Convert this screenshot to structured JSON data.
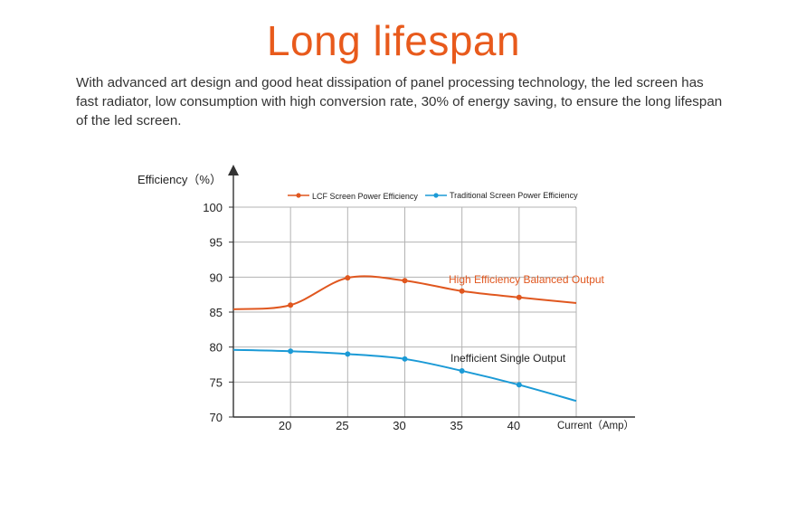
{
  "page": {
    "title": "Long lifespan",
    "description": "With advanced art design and good heat dissipation of panel processing technology, the led screen has fast radiator, low consumption with high conversion rate, 30% of energy saving,  to ensure the long lifespan of the led screen."
  },
  "colors": {
    "accent": "#e85a1c",
    "lcf": "#e0571f",
    "traditional": "#1b9ad6",
    "grid": "#b3b3b3",
    "axis": "#333333"
  },
  "chart_data": {
    "type": "line",
    "ylabel": "Efficiency（%）",
    "xlabel": "Current（Amp）",
    "xlim": [
      15,
      45
    ],
    "ylim": [
      70,
      100
    ],
    "x_ticks": [
      20,
      25,
      30,
      35,
      40
    ],
    "y_ticks": [
      70,
      75,
      80,
      85,
      90,
      95,
      100
    ],
    "grid": true,
    "legend_position": "top",
    "series": [
      {
        "name": "LCF Screen Power Efficiency",
        "x": [
          15,
          20,
          25,
          30,
          35,
          40,
          45
        ],
        "y": [
          85.4,
          86.0,
          89.9,
          89.5,
          88.0,
          87.1,
          86.3
        ],
        "marker_x": [
          20,
          25,
          30,
          35,
          40
        ],
        "annotation": "High Efficiency Balanced Output"
      },
      {
        "name": "Traditional Screen Power Efficiency",
        "x": [
          15,
          20,
          25,
          30,
          35,
          40,
          45
        ],
        "y": [
          79.6,
          79.4,
          79.0,
          78.3,
          76.6,
          74.6,
          72.3
        ],
        "marker_x": [
          20,
          25,
          30,
          35,
          40
        ],
        "annotation": "Inefficient Single Output"
      }
    ]
  }
}
